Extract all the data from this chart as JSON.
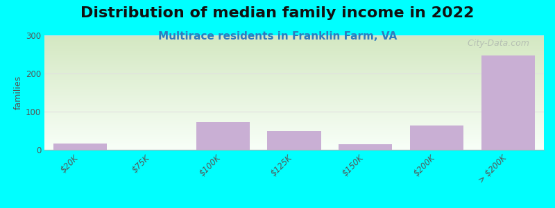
{
  "title": "Distribution of median family income in 2022",
  "subtitle": "Multirace residents in Franklin Farm, VA",
  "categories": [
    "$20K",
    "$75K",
    "$100K",
    "$125K",
    "$150K",
    "$200K",
    "> $200K"
  ],
  "values": [
    17,
    0,
    72,
    50,
    15,
    63,
    248
  ],
  "bar_color": "#c9afd4",
  "bar_edgecolor": "#c9afd4",
  "background_color": "#00FFFF",
  "plot_bg_gradient_top": "#d4e8c2",
  "plot_bg_gradient_bottom": "#f8fff8",
  "ylabel": "families",
  "ylim": [
    0,
    300
  ],
  "yticks": [
    0,
    100,
    200,
    300
  ],
  "grid_color": "#e0e0e0",
  "title_fontsize": 16,
  "subtitle_fontsize": 11,
  "subtitle_color": "#2e7bbd",
  "watermark_text": "  City-Data.com",
  "watermark_color": "#b0b8b0",
  "axis_line_color": "#b0b0b0"
}
